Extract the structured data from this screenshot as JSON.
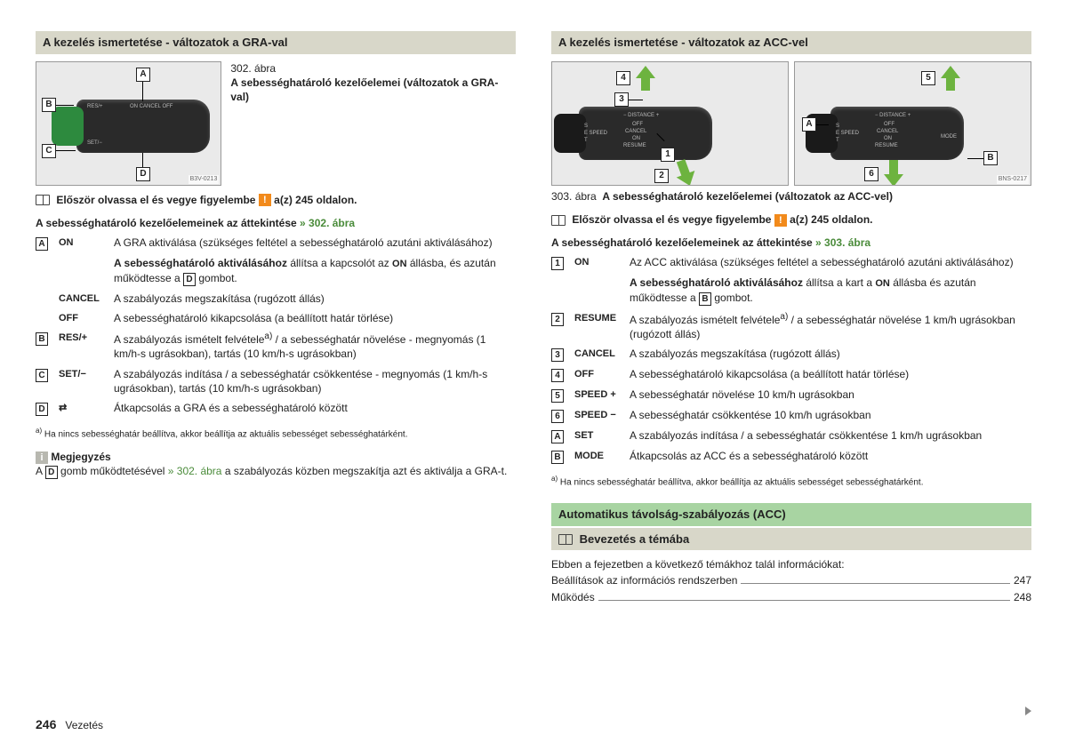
{
  "left": {
    "section_title": "A kezelés ismertetése - változatok a GRA-val",
    "fig302_num": "302. ábra",
    "fig302_title": "A sebességhatároló kezelőelemei (változatok a GRA-val)",
    "img_code": "B3V-0213",
    "read_first_a": "Először olvassa el és vegye figyelembe",
    "read_first_b": "a(z) 245 oldalon.",
    "overview": "A sebességhatároló kezelőelemeinek az áttekintése",
    "overview_ref": "» 302. ábra",
    "rows": [
      {
        "k": "A",
        "lbl": "ON",
        "txt": "A GRA aktiválása (szükséges feltétel a sebességhatároló azutáni aktiválásához)"
      },
      {
        "k": "",
        "lbl": "",
        "txt": "<b>A sebességhatároló aktiválásához</b> állítsa a kapcsolót az <span class='mono'>ON</span> állásba, és azután működtesse a <span class='keybox'>D</span> gombot."
      },
      {
        "k": "",
        "lbl": "CANCEL",
        "txt": "A szabályozás megszakítása (rugózott állás)"
      },
      {
        "k": "",
        "lbl": "OFF",
        "txt": "A sebességhatároló kikapcsolása (a beállított határ törlése)"
      },
      {
        "k": "B",
        "lbl": "RES/+",
        "txt": "A szabályozás ismételt felvétele<sup>a)</sup> / a sebességhatár növelése - megnyomás (1 km/h-s ugrásokban), tartás (10 km/h-s ugrásokban)"
      },
      {
        "k": "C",
        "lbl": "SET/−",
        "txt": "A szabályozás indítása / a sebességhatár csökkentése - megnyomás (1 km/h-s ugrásokban), tartás (10 km/h-s ugrásokban)"
      },
      {
        "k": "D",
        "lbl": "⇄",
        "txt": "Átkapcsolás a GRA és a sebességhatároló között"
      }
    ],
    "footnote": "Ha nincs sebességhatár beállítva, akkor beállítja az aktuális sebességet sebességhatárként.",
    "note_head": "Megjegyzés",
    "note_text_a": "A ",
    "note_text_b": " gomb működtetésével ",
    "note_ref": "» 302. ábra",
    "note_text_c": " a szabályozás közben megszakítja azt és aktiválja a GRA-t.",
    "callouts": {
      "A": "A",
      "B": "B",
      "C": "C",
      "D": "D"
    }
  },
  "right": {
    "section_title": "A kezelés ismertetése - változatok az ACC-vel",
    "img_code": "BNS-0217",
    "fig303": "303. ábra",
    "fig303_title": "A sebességhatároló kezelőelemei (változatok az ACC-vel)",
    "read_first_a": "Először olvassa el és vegye figyelembe",
    "read_first_b": "a(z) 245 oldalon.",
    "overview": "A sebességhatároló kezelőelemeinek az áttekintése",
    "overview_ref": "» 303. ábra",
    "rows": [
      {
        "k": "1",
        "lbl": "ON",
        "txt": "Az ACC aktiválása (szükséges feltétel a sebességhatároló azutáni aktiválásához)"
      },
      {
        "k": "",
        "lbl": "",
        "txt": "<b>A sebességhatároló aktiválásához</b> állítsa a kart a <span class='mono'>ON</span> állásba és azután működtesse a <span class='keybox'>B</span> gombot."
      },
      {
        "k": "2",
        "lbl": "RESUME",
        "txt": "A szabályozás ismételt felvétele<sup>a)</sup> / a sebességhatár növelése 1 km/h ugrásokban (rugózott állás)"
      },
      {
        "k": "3",
        "lbl": "CANCEL",
        "txt": "A szabályozás megszakítása (rugózott állás)"
      },
      {
        "k": "4",
        "lbl": "OFF",
        "txt": "A sebességhatároló kikapcsolása (a beállított határ törlése)"
      },
      {
        "k": "5",
        "lbl": "SPEED +",
        "txt": "A sebességhatár növelése 10 km/h ugrásokban"
      },
      {
        "k": "6",
        "lbl": "SPEED −",
        "txt": "A sebességhatár csökkentése 10 km/h ugrásokban"
      },
      {
        "k": "A",
        "lbl": "SET",
        "txt": "A szabályozás indítása / a sebességhatár csökkentése 1 km/h ugrásokban"
      },
      {
        "k": "B",
        "lbl": "MODE",
        "txt": "Átkapcsolás az ACC és a sebességhatároló között"
      }
    ],
    "footnote": "Ha nincs sebességhatár beállítva, akkor beállítja az aktuális sebességet sebességhatárként.",
    "green_section": "Automatikus távolság-szabályozás (ACC)",
    "sub_section": "Bevezetés a témába",
    "intro": "Ebben a fejezetben a következő témákhoz talál információkat:",
    "toc": [
      {
        "label": "Beállítások az információs rendszerben",
        "pg": "247"
      },
      {
        "label": "Működés",
        "pg": "248"
      }
    ]
  },
  "footer": {
    "page": "246",
    "chapter": "Vezetés"
  }
}
